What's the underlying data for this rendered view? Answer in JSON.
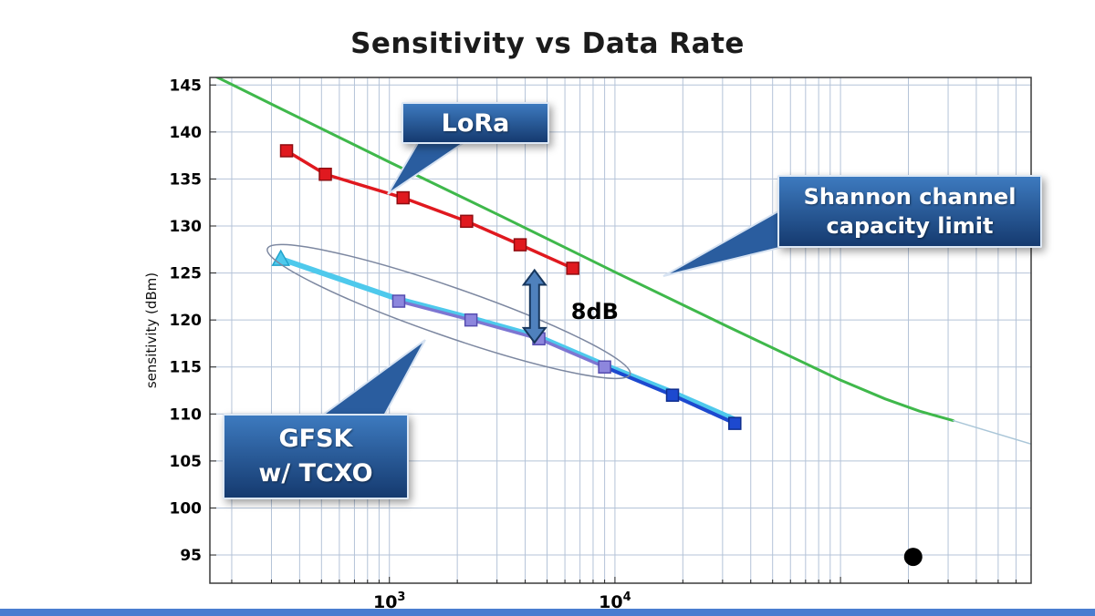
{
  "title": "Sensitivity vs Data Rate",
  "ui": {
    "background": "#ffffff",
    "bottom_bar_color": "#4a7dd0"
  },
  "callouts": {
    "lora": {
      "label": "LoRa"
    },
    "shannon": {
      "lines": [
        "Shannon channel",
        "capacity limit"
      ]
    },
    "gfsk": {
      "lines": [
        "GFSK",
        "w/ TCXO"
      ]
    },
    "box_gradient_top": "#3d7abf",
    "box_gradient_bottom": "#153a6f",
    "pointer_fill": "#2a5d9f",
    "pointer_stroke": "#d7e3f2"
  },
  "chart_data": {
    "type": "line",
    "title": "Sensitivity vs Data Rate",
    "xlabel": "",
    "ylabel": "sensitivity (dBm)",
    "x_scale": "log",
    "xlim": [
      160,
      700000
    ],
    "ylim": [
      92,
      145.8
    ],
    "y_ticks": [
      95,
      100,
      105,
      110,
      115,
      120,
      125,
      130,
      135,
      140,
      145
    ],
    "x_ticks": [
      {
        "value": 1000,
        "base": "10",
        "exp": "3"
      },
      {
        "value": 10000,
        "base": "10",
        "exp": "4"
      }
    ],
    "grid": true,
    "grid_color": "#b4c3d8",
    "legend": "none",
    "series": [
      {
        "name": "Shannon channel capacity limit",
        "color": "#3fb84b",
        "width": 3,
        "marker": "none",
        "points": [
          [
            160,
            146.2
          ],
          [
            316,
            142.7
          ],
          [
            1000,
            136.8
          ],
          [
            3160,
            131.0
          ],
          [
            10000,
            125.1
          ],
          [
            31600,
            119.3
          ],
          [
            100000,
            113.6
          ],
          [
            158000,
            111.6
          ],
          [
            224000,
            110.3
          ],
          [
            316000,
            109.3
          ]
        ]
      },
      {
        "name": "Shannon limit extension",
        "color": "#aac6d8",
        "width": 1.5,
        "marker": "none",
        "points": [
          [
            316000,
            109.3
          ],
          [
            700000,
            106.8
          ]
        ]
      },
      {
        "name": "GFSK w/ TCXO (underlay)",
        "color": "#4ec9ec",
        "width": 6,
        "marker": "triangle",
        "marker_at": "first",
        "marker_color": "#4ec9ec",
        "marker_edge": "#21a3cc",
        "points": [
          [
            330,
            126.5
          ],
          [
            1100,
            122.2
          ],
          [
            2300,
            120.2
          ],
          [
            4600,
            118.2
          ],
          [
            9000,
            115.2
          ],
          [
            18000,
            112.3
          ],
          [
            34000,
            109.4
          ]
        ]
      },
      {
        "name": "GFSK w/ TCXO",
        "color": "#7d76d2",
        "width": 3.5,
        "marker": "square",
        "marker_at": "all",
        "marker_color": "#8d86dd",
        "marker_edge": "#554cb0",
        "points": [
          [
            1100,
            122
          ],
          [
            2300,
            120
          ],
          [
            4600,
            118
          ],
          [
            9000,
            115
          ]
        ]
      },
      {
        "name": "GFSK w/ TCXO (high rate)",
        "color": "#1d49cf",
        "width": 4,
        "marker": "square",
        "marker_at": "rest",
        "marker_color": "#1d49cf",
        "marker_edge": "#0e2d8e",
        "points": [
          [
            9000,
            115
          ],
          [
            18000,
            112
          ],
          [
            34000,
            109
          ]
        ]
      },
      {
        "name": "LoRa",
        "color": "#e0191f",
        "width": 3.5,
        "marker": "square",
        "marker_at": "all",
        "marker_color": "#e0191f",
        "marker_edge": "#8f0d11",
        "points": [
          [
            350,
            138
          ],
          [
            520,
            135.5
          ],
          [
            1150,
            133
          ],
          [
            2200,
            130.5
          ],
          [
            3800,
            128
          ],
          [
            6500,
            125.5
          ]
        ]
      }
    ],
    "annotations": {
      "gap_arrow": {
        "x": 4400,
        "y_top": 125.3,
        "y_bottom": 117.6,
        "label": "8dB",
        "fill": "#4f81bd",
        "stroke": "#17375e"
      },
      "ellipse": {
        "x0": 320,
        "y0": 127.2,
        "x1": 10500,
        "y1": 114.6,
        "ry": 27,
        "color": "#7c87a0"
      },
      "dot": {
        "x": 210000,
        "y": 94.8,
        "r": 10,
        "color": "#000000"
      }
    }
  }
}
